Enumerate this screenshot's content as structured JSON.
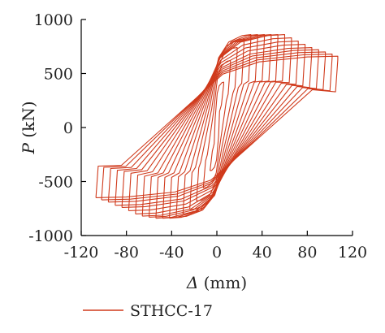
{
  "chart_data": {
    "type": "line",
    "xlabel_symbol": "Δ",
    "xlabel_unit": " (mm)",
    "ylabel_symbol": "P",
    "ylabel_unit": " (kN)",
    "xlim": [
      -120,
      120
    ],
    "ylim": [
      -1000,
      1000
    ],
    "xticks": [
      -120,
      -80,
      -40,
      0,
      40,
      80,
      120
    ],
    "yticks": [
      -1000,
      -500,
      0,
      500,
      1000
    ],
    "grid": false,
    "legend_position": "bottom-left",
    "series": [
      {
        "name": "STHCC-17",
        "color": "#d03a1c",
        "cycles": [
          {
            "amp": 6,
            "pmax": 420,
            "pmin": -400,
            "ret": 150
          },
          {
            "amp": 12,
            "pmax": 620,
            "pmin": -560,
            "ret": 250
          },
          {
            "amp": 18,
            "pmax": 740,
            "pmin": -680,
            "ret": 320
          },
          {
            "amp": 24,
            "pmax": 820,
            "pmin": -760,
            "ret": 370
          },
          {
            "amp": 30,
            "pmax": 860,
            "pmin": -800,
            "ret": 400
          },
          {
            "amp": 36,
            "pmax": 860,
            "pmin": -830,
            "ret": 410
          },
          {
            "amp": 42,
            "pmax": 860,
            "pmin": -840,
            "ret": 420
          },
          {
            "amp": 48,
            "pmax": 860,
            "pmin": -840,
            "ret": 420
          },
          {
            "amp": 54,
            "pmax": 860,
            "pmin": -840,
            "ret": 420
          },
          {
            "amp": 60,
            "pmax": 860,
            "pmin": -830,
            "ret": 420
          },
          {
            "amp": 66,
            "pmax": 830,
            "pmin": -820,
            "ret": 420
          },
          {
            "amp": 72,
            "pmax": 800,
            "pmin": -800,
            "ret": 410
          },
          {
            "amp": 78,
            "pmax": 770,
            "pmin": -770,
            "ret": 400
          },
          {
            "amp": 84,
            "pmax": 740,
            "pmin": -740,
            "ret": 390
          },
          {
            "amp": 90,
            "pmax": 720,
            "pmin": -720,
            "ret": 380
          },
          {
            "amp": 96,
            "pmax": 700,
            "pmin": -690,
            "ret": 370
          },
          {
            "amp": 102,
            "pmax": 680,
            "pmin": -670,
            "ret": 360
          },
          {
            "amp": 107,
            "pmax": 660,
            "pmin": -650,
            "ret": 350
          }
        ]
      }
    ]
  }
}
